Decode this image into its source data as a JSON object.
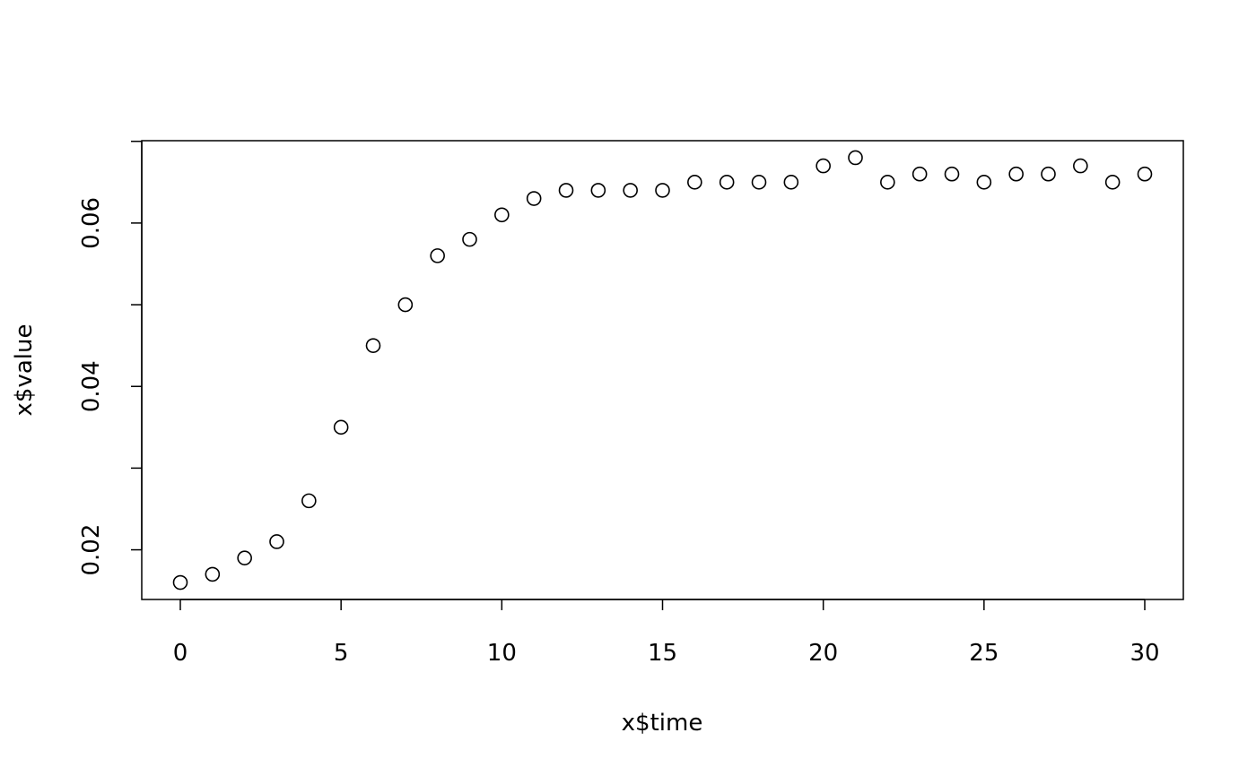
{
  "chart_data": {
    "type": "scatter",
    "title": "",
    "xlabel": "x$time",
    "ylabel": "x$value",
    "xlim": [
      -1.2,
      31.2
    ],
    "ylim": [
      0.01392,
      0.07008
    ],
    "xticks": [
      0,
      5,
      10,
      15,
      20,
      25,
      30
    ],
    "xtick_labels": [
      "0",
      "5",
      "10",
      "15",
      "20",
      "25",
      "30"
    ],
    "yticks": [
      0.02,
      0.03,
      0.04,
      0.05,
      0.06,
      0.07
    ],
    "ytick_labels": [
      "0.02",
      "",
      "0.04",
      "",
      "0.06",
      ""
    ],
    "grid": false,
    "marker": "open-circle",
    "color": "#000000",
    "x": [
      0,
      1,
      2,
      3,
      4,
      5,
      6,
      7,
      8,
      9,
      10,
      11,
      12,
      13,
      14,
      15,
      16,
      17,
      18,
      19,
      20,
      21,
      22,
      23,
      24,
      25,
      26,
      27,
      28,
      29,
      30
    ],
    "y": [
      0.016,
      0.017,
      0.019,
      0.021,
      0.026,
      0.035,
      0.045,
      0.05,
      0.056,
      0.058,
      0.061,
      0.063,
      0.064,
      0.064,
      0.064,
      0.064,
      0.065,
      0.065,
      0.065,
      0.065,
      0.067,
      0.068,
      0.065,
      0.066,
      0.066,
      0.065,
      0.066,
      0.066,
      0.067,
      0.065,
      0.066
    ]
  }
}
